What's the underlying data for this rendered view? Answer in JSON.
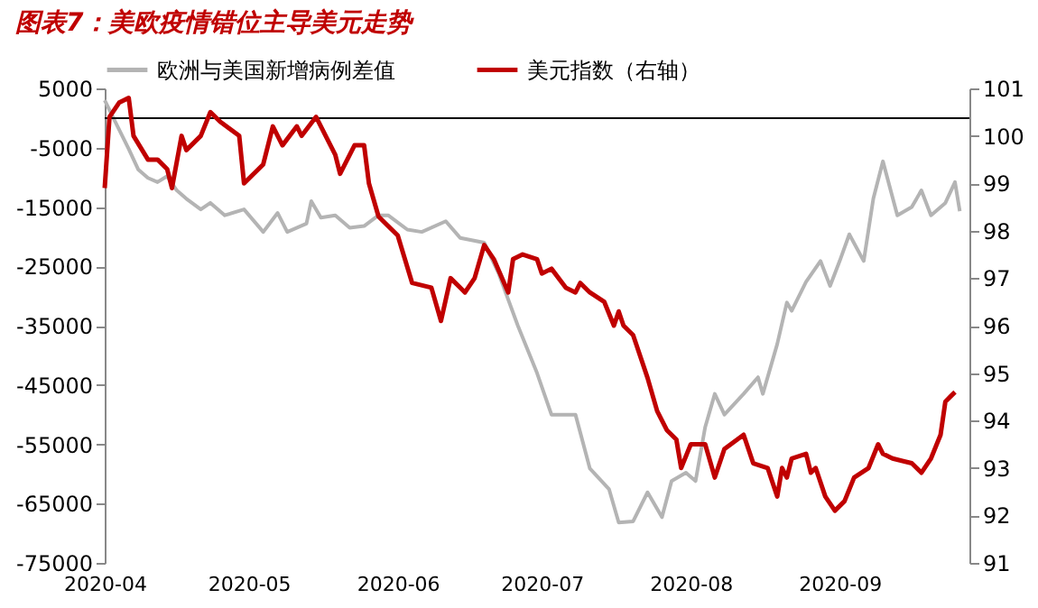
{
  "chart_data": {
    "type": "line",
    "title": "图表7：美欧疫情错位主导美元走势",
    "series": [
      {
        "name": "欧洲与美国新增病例差值",
        "color": "#b4b4b4",
        "x": [
          "2020-04-01",
          "2020-04-03",
          "2020-04-06",
          "2020-04-08",
          "2020-04-10",
          "2020-04-12",
          "2020-04-14",
          "2020-04-16",
          "2020-04-18",
          "2020-04-21",
          "2020-04-23",
          "2020-04-26",
          "2020-04-30",
          "2020-05-04",
          "2020-05-07",
          "2020-05-09",
          "2020-05-13",
          "2020-05-14",
          "2020-05-16",
          "2020-05-19",
          "2020-05-22",
          "2020-05-25",
          "2020-05-28",
          "2020-05-30",
          "2020-06-03",
          "2020-06-06",
          "2020-06-11",
          "2020-06-14",
          "2020-06-19",
          "2020-06-22",
          "2020-06-26",
          "2020-06-30",
          "2020-07-03",
          "2020-07-08",
          "2020-07-11",
          "2020-07-15",
          "2020-07-17",
          "2020-07-20",
          "2020-07-23",
          "2020-07-26",
          "2020-07-28",
          "2020-07-31",
          "2020-08-02",
          "2020-08-04",
          "2020-08-06",
          "2020-08-08",
          "2020-08-12",
          "2020-08-15",
          "2020-08-16",
          "2020-08-19",
          "2020-08-21",
          "2020-08-22",
          "2020-08-25",
          "2020-08-28",
          "2020-08-30",
          "2020-09-01",
          "2020-09-03",
          "2020-09-06",
          "2020-09-08",
          "2020-09-10",
          "2020-09-13",
          "2020-09-16",
          "2020-09-18",
          "2020-09-20",
          "2020-09-23",
          "2020-09-25",
          "2020-09-26"
        ],
        "values": [
          3000,
          -300,
          -5200,
          -8700,
          -10100,
          -10800,
          -9800,
          -12200,
          -13600,
          -15400,
          -14300,
          -16400,
          -15400,
          -19200,
          -16000,
          -19200,
          -17800,
          -14000,
          -16800,
          -16400,
          -18500,
          -18200,
          -16400,
          -16400,
          -18800,
          -19200,
          -17400,
          -20200,
          -21000,
          -26200,
          -35000,
          -43000,
          -50000,
          -50000,
          -59100,
          -62600,
          -68200,
          -68000,
          -63100,
          -67300,
          -61200,
          -59800,
          -61200,
          -52100,
          -46500,
          -50000,
          -46500,
          -43700,
          -46500,
          -38100,
          -31100,
          -32500,
          -27600,
          -24100,
          -28300,
          -24100,
          -19600,
          -24100,
          -13600,
          -7300,
          -16400,
          -15000,
          -12200,
          -16400,
          -14300,
          -10800,
          -15700
        ]
      },
      {
        "name": "美元指数（右轴）",
        "color": "#c00000",
        "axis": "y2",
        "x": [
          "2020-04-01",
          "2020-04-02",
          "2020-04-04",
          "2020-04-06",
          "2020-04-07",
          "2020-04-10",
          "2020-04-12",
          "2020-04-14",
          "2020-04-15",
          "2020-04-17",
          "2020-04-18",
          "2020-04-21",
          "2020-04-23",
          "2020-04-25",
          "2020-04-29",
          "2020-04-30",
          "2020-05-04",
          "2020-05-06",
          "2020-05-08",
          "2020-05-11",
          "2020-05-12",
          "2020-05-15",
          "2020-05-19",
          "2020-05-20",
          "2020-05-23",
          "2020-05-25",
          "2020-05-26",
          "2020-05-28",
          "2020-06-01",
          "2020-06-04",
          "2020-06-08",
          "2020-06-10",
          "2020-06-12",
          "2020-06-15",
          "2020-06-17",
          "2020-06-19",
          "2020-06-21",
          "2020-06-24",
          "2020-06-25",
          "2020-06-27",
          "2020-06-30",
          "2020-07-01",
          "2020-07-03",
          "2020-07-06",
          "2020-07-08",
          "2020-07-09",
          "2020-07-10",
          "2020-07-11",
          "2020-07-14",
          "2020-07-16",
          "2020-07-17",
          "2020-07-18",
          "2020-07-20",
          "2020-07-23",
          "2020-07-25",
          "2020-07-27",
          "2020-07-29",
          "2020-07-30",
          "2020-08-01",
          "2020-08-04",
          "2020-08-06",
          "2020-08-08",
          "2020-08-12",
          "2020-08-14",
          "2020-08-17",
          "2020-08-19",
          "2020-08-20",
          "2020-08-21",
          "2020-08-22",
          "2020-08-25",
          "2020-08-26",
          "2020-08-27",
          "2020-08-29",
          "2020-08-31",
          "2020-09-02",
          "2020-09-04",
          "2020-09-07",
          "2020-09-09",
          "2020-09-10",
          "2020-09-12",
          "2020-09-16",
          "2020-09-18",
          "2020-09-20",
          "2020-09-22",
          "2020-09-23",
          "2020-09-24",
          "2020-09-25"
        ],
        "values": [
          98.9,
          100.4,
          100.7,
          100.8,
          100.0,
          99.5,
          99.5,
          99.3,
          98.9,
          100.0,
          99.7,
          100.0,
          100.5,
          100.3,
          100.0,
          99.0,
          99.4,
          100.2,
          99.8,
          100.2,
          100.0,
          100.4,
          99.6,
          99.2,
          99.8,
          99.8,
          99.0,
          98.3,
          97.9,
          96.9,
          96.8,
          96.1,
          97.0,
          96.7,
          97.0,
          97.7,
          97.4,
          96.7,
          97.4,
          97.5,
          97.4,
          97.1,
          97.2,
          96.8,
          96.7,
          96.9,
          96.8,
          96.7,
          96.5,
          96.0,
          96.3,
          96.0,
          95.8,
          94.9,
          94.2,
          93.8,
          93.6,
          93.0,
          93.5,
          93.5,
          92.8,
          93.4,
          93.7,
          93.1,
          93.0,
          92.4,
          93.0,
          92.8,
          93.2,
          93.3,
          92.9,
          93.0,
          92.4,
          92.1,
          92.3,
          92.8,
          93.0,
          93.5,
          93.3,
          93.2,
          93.1,
          92.9,
          93.2,
          93.7,
          94.4,
          94.5,
          94.6
        ]
      }
    ],
    "xlim": [
      "2020-04-01",
      "2020-09-28"
    ],
    "xticks": [
      "2020-04",
      "2020-05",
      "2020-06",
      "2020-07",
      "2020-08",
      "2020-09"
    ],
    "ylim": [
      -75000,
      5000
    ],
    "yticks": [
      5000,
      -5000,
      -15000,
      -25000,
      -35000,
      -45000,
      -55000,
      -65000,
      -75000
    ],
    "y2lim": [
      91,
      101
    ],
    "y2ticks": [
      91,
      92,
      93,
      94,
      95,
      96,
      97,
      98,
      99,
      100,
      101
    ],
    "ref_lines": [
      {
        "axis": "y",
        "value": 0
      }
    ],
    "legend": "top",
    "grid": false,
    "marker": "none",
    "line_style": "solid"
  }
}
